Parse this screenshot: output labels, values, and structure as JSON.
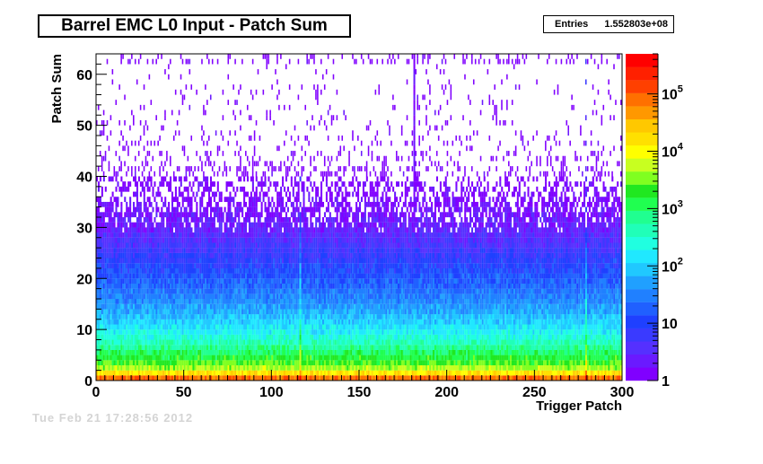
{
  "title": "Barrel EMC L0 Input - Patch Sum",
  "stats": {
    "label": "Entries",
    "value": "1.552803e+08"
  },
  "watermark": "Tue Feb 21 17:28:56 2012",
  "chart_data": {
    "type": "heatmap",
    "title": "Barrel EMC L0 Input - Patch Sum",
    "xlabel": "Trigger Patch",
    "ylabel": "Patch Sum",
    "xlim": [
      0,
      300
    ],
    "ylim": [
      0,
      64
    ],
    "x_ticks": [
      "0",
      "50",
      "100",
      "150",
      "200",
      "250",
      "300"
    ],
    "y_ticks": [
      "0",
      "10",
      "20",
      "30",
      "40",
      "50",
      "60"
    ],
    "z_scale": "log",
    "z_range": [
      1,
      500000
    ],
    "z_ticks": [
      {
        "base": "1",
        "exp": ""
      },
      {
        "base": "10",
        "exp": ""
      },
      {
        "base": "10",
        "exp": "2"
      },
      {
        "base": "10",
        "exp": "3"
      },
      {
        "base": "10",
        "exp": "4"
      },
      {
        "base": "10",
        "exp": "5"
      }
    ],
    "palette": [
      "#8000ff",
      "#6a1aff",
      "#5530ff",
      "#3a3aff",
      "#1f40ff",
      "#2060ff",
      "#2080ff",
      "#20a0ff",
      "#20c8ff",
      "#20e8ff",
      "#20ffe0",
      "#20ffb8",
      "#20ff90",
      "#20ff50",
      "#20e820",
      "#80ff20",
      "#c8ff20",
      "#ffff00",
      "#ffe000",
      "#ffc800",
      "#ff9800",
      "#ff7000",
      "#ff4000",
      "#ff2000",
      "#ff0000"
    ],
    "density_profile": [
      {
        "y": 0,
        "log10_counts": 5.2
      },
      {
        "y": 1,
        "log10_counts": 4.6
      },
      {
        "y": 2,
        "log10_counts": 3.8
      },
      {
        "y": 3,
        "log10_counts": 3.5
      },
      {
        "y": 4,
        "log10_counts": 3.3
      },
      {
        "y": 6,
        "log10_counts": 2.9
      },
      {
        "y": 8,
        "log10_counts": 2.5
      },
      {
        "y": 10,
        "log10_counts": 2.2
      },
      {
        "y": 15,
        "log10_counts": 1.6
      },
      {
        "y": 20,
        "log10_counts": 1.2
      },
      {
        "y": 25,
        "log10_counts": 0.8
      },
      {
        "y": 30,
        "log10_counts": 0.4
      },
      {
        "y": 35,
        "log10_counts": 0.15
      },
      {
        "y": 40,
        "log10_counts": 0.0
      },
      {
        "y": 64,
        "log10_counts": 0.0
      }
    ],
    "notable_columns": [
      {
        "x": 181,
        "note": "hot patch extends to top"
      },
      {
        "x": 116,
        "note": "low column"
      },
      {
        "x": 279,
        "note": "low column"
      }
    ]
  }
}
